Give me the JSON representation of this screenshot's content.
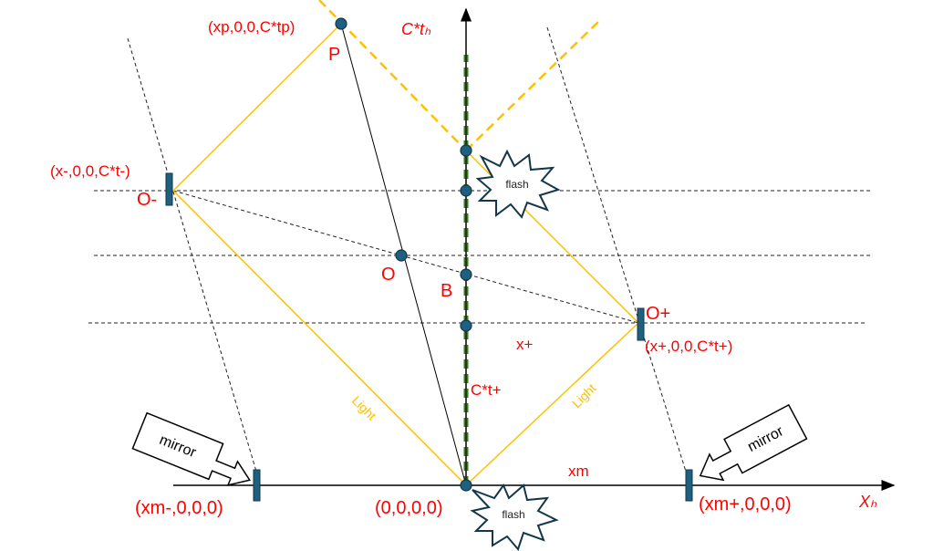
{
  "labels": {
    "time_axis": "C*tₕ",
    "x_axis": "Xₕ",
    "p_coord": "(xp,0,0,C*tp)",
    "p_label": "P",
    "ominus_coord": "(x-,0,0,C*t-)",
    "ominus_label": "O-",
    "o_label": "O",
    "b_label": "B",
    "oplus_label": "O+",
    "oplus_coord": "(x+,0,0,C*t+)",
    "xplus": "x+",
    "ctplus": "C*t+",
    "xm": "xm",
    "origin": "(0,0,0,0)",
    "xm_minus": "(xm-,0,0,0)",
    "xm_plus": "(xm+,0,0,0)",
    "light_left": "Light",
    "light_right": "Light",
    "flash_top": "flash",
    "flash_bottom": "flash",
    "mirror_left": "mirror",
    "mirror_right": "mirror"
  },
  "colors": {
    "labels": "#ff0000",
    "light": "#ffc000",
    "worldline": "#3a7a22",
    "points": "#1f5f80"
  }
}
